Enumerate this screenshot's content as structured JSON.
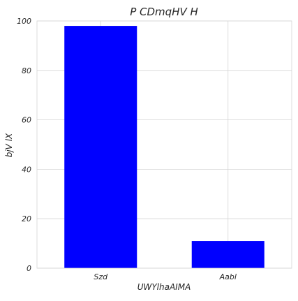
{
  "chart_data": {
    "type": "bar",
    "title": "P CDmqHV H",
    "xlabel": "UWYlhaAIMA",
    "ylabel": "bjV lX",
    "categories": [
      "Szd",
      "Aabl"
    ],
    "values": [
      98,
      11
    ],
    "ylim": [
      0,
      100
    ],
    "yticks": [
      0,
      20,
      40,
      60,
      80,
      100
    ],
    "bar_color": "#0000ff",
    "grid": true,
    "legend": false
  }
}
